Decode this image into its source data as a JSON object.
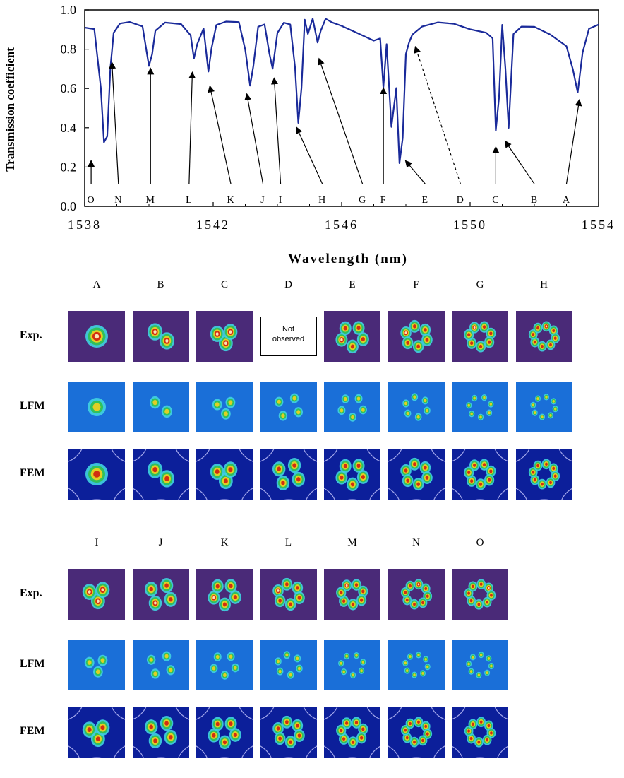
{
  "chart_data": {
    "type": "line",
    "xlabel": "Wavelength (nm)",
    "ylabel": "Transmission coefficient",
    "xlim": [
      1538,
      1554
    ],
    "ylim": [
      0.0,
      1.0
    ],
    "xticks": [
      1538,
      1542,
      1546,
      1550,
      1554
    ],
    "xtick_labels": [
      "1538",
      "1542",
      "1546",
      "1550",
      "1554"
    ],
    "yticks": [
      0.0,
      0.2,
      0.4,
      0.6,
      0.8,
      1.0
    ],
    "ytick_labels": [
      "0.0",
      "0.2",
      "0.4",
      "0.6",
      "0.8",
      "1.0"
    ],
    "series": [
      {
        "color": "#1a2a9a",
        "x": [
          1538.0,
          1538.3,
          1538.5,
          1538.6,
          1538.7,
          1538.8,
          1538.9,
          1539.1,
          1539.4,
          1539.8,
          1540.0,
          1540.1,
          1540.2,
          1540.5,
          1541.0,
          1541.3,
          1541.4,
          1541.5,
          1541.7,
          1541.85,
          1541.95,
          1542.1,
          1542.4,
          1542.8,
          1543.0,
          1543.15,
          1543.25,
          1543.4,
          1543.6,
          1543.75,
          1543.85,
          1544.0,
          1544.2,
          1544.4,
          1544.55,
          1544.65,
          1544.75,
          1544.85,
          1544.95,
          1545.1,
          1545.25,
          1545.35,
          1545.5,
          1545.7,
          1546.0,
          1546.5,
          1547.0,
          1547.2,
          1547.3,
          1547.4,
          1547.55,
          1547.7,
          1547.8,
          1547.9,
          1548.0,
          1548.1,
          1548.2,
          1548.5,
          1549.0,
          1549.5,
          1550.0,
          1550.5,
          1550.7,
          1550.8,
          1550.9,
          1551.0,
          1551.1,
          1551.2,
          1551.35,
          1551.6,
          1552.0,
          1552.5,
          1553.0,
          1553.2,
          1553.35,
          1553.5,
          1553.7,
          1554.0
        ],
        "y": [
          0.91,
          0.9,
          0.6,
          0.32,
          0.35,
          0.7,
          0.88,
          0.93,
          0.94,
          0.92,
          0.72,
          0.78,
          0.9,
          0.94,
          0.93,
          0.87,
          0.75,
          0.82,
          0.9,
          0.68,
          0.8,
          0.92,
          0.94,
          0.94,
          0.8,
          0.62,
          0.72,
          0.92,
          0.93,
          0.78,
          0.7,
          0.88,
          0.93,
          0.92,
          0.7,
          0.42,
          0.6,
          0.95,
          0.88,
          0.96,
          0.84,
          0.9,
          0.96,
          0.94,
          0.92,
          0.88,
          0.84,
          0.85,
          0.6,
          0.82,
          0.4,
          0.6,
          0.22,
          0.35,
          0.78,
          0.84,
          0.88,
          0.92,
          0.94,
          0.93,
          0.9,
          0.88,
          0.85,
          0.38,
          0.55,
          0.92,
          0.7,
          0.4,
          0.88,
          0.92,
          0.92,
          0.88,
          0.82,
          0.7,
          0.58,
          0.78,
          0.9,
          0.92
        ]
      }
    ],
    "annotations": [
      {
        "text": "O",
        "tip": [
          1538.2,
          0.23
        ],
        "base": [
          1538.2,
          0.1
        ],
        "dashed": false
      },
      {
        "text": "N",
        "tip": [
          1538.85,
          0.73
        ],
        "base": [
          1539.05,
          0.1
        ],
        "dashed": false
      },
      {
        "text": "M",
        "tip": [
          1540.05,
          0.7
        ],
        "base": [
          1540.05,
          0.1
        ],
        "dashed": false
      },
      {
        "text": "L",
        "tip": [
          1541.35,
          0.68
        ],
        "base": [
          1541.25,
          0.1
        ],
        "dashed": false
      },
      {
        "text": "K",
        "tip": [
          1541.9,
          0.61
        ],
        "base": [
          1542.55,
          0.1
        ],
        "dashed": false
      },
      {
        "text": "J",
        "tip": [
          1543.05,
          0.57
        ],
        "base": [
          1543.55,
          0.1
        ],
        "dashed": false
      },
      {
        "text": "I",
        "tip": [
          1543.9,
          0.65
        ],
        "base": [
          1544.1,
          0.1
        ],
        "dashed": false
      },
      {
        "text": "H",
        "tip": [
          1544.6,
          0.4
        ],
        "base": [
          1545.4,
          0.1
        ],
        "dashed": false
      },
      {
        "text": "G",
        "tip": [
          1545.3,
          0.75
        ],
        "base": [
          1546.65,
          0.1
        ],
        "dashed": false
      },
      {
        "text": "F",
        "tip": [
          1547.3,
          0.6
        ],
        "base": [
          1547.3,
          0.1
        ],
        "dashed": false
      },
      {
        "text": "E",
        "tip": [
          1548.0,
          0.23
        ],
        "base": [
          1548.6,
          0.1
        ],
        "dashed": false
      },
      {
        "text": "D",
        "tip": [
          1548.3,
          0.81
        ],
        "base": [
          1549.7,
          0.1
        ],
        "dashed": true
      },
      {
        "text": "C",
        "tip": [
          1550.8,
          0.3
        ],
        "base": [
          1550.8,
          0.1
        ],
        "dashed": false
      },
      {
        "text": "B",
        "tip": [
          1551.1,
          0.33
        ],
        "base": [
          1552.0,
          0.1
        ],
        "dashed": false
      },
      {
        "text": "A",
        "tip": [
          1553.4,
          0.54
        ],
        "base": [
          1553.0,
          0.1
        ],
        "dashed": false
      }
    ]
  },
  "mode_grid": {
    "row_labels": [
      "Exp.",
      "LFM",
      "FEM"
    ],
    "top_columns": [
      "A",
      "B",
      "C",
      "D",
      "E",
      "F",
      "G",
      "H"
    ],
    "bottom_columns": [
      "I",
      "J",
      "K",
      "L",
      "M",
      "N",
      "O"
    ],
    "not_observed_line1": "Not",
    "not_observed_line2": "observed",
    "colors": {
      "exp_background": "#4a2a78",
      "lfm_background": "#1a6fd8",
      "fem_background": "#0c1f9a",
      "cladding_outline": "#c8c8ff",
      "hot_core": "#fff2c0",
      "red_core": "#d02010",
      "yellow_ring": "#f0d020",
      "green_ring": "#30c050",
      "cyan_ring": "#40d0e0"
    }
  }
}
